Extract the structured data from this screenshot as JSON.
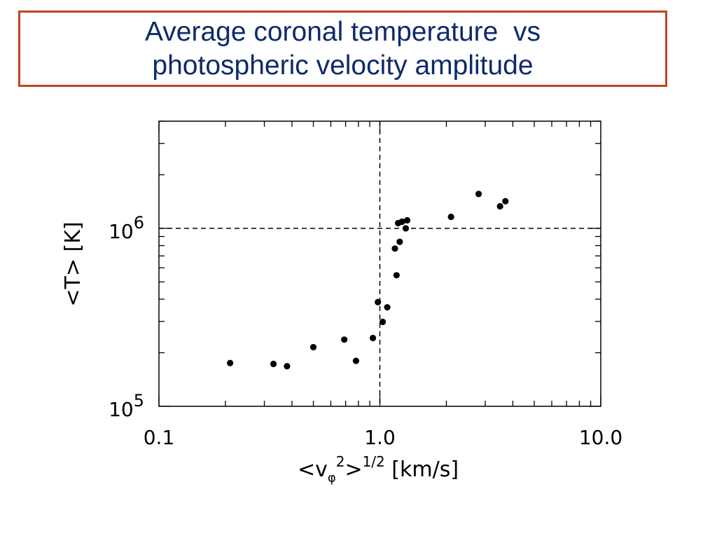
{
  "slide": {
    "title_line1": "Average coronal temperature  vs",
    "title_line2": "photospheric velocity amplitude",
    "title_color": "#0e2a6b",
    "border_color": "#c0451e"
  },
  "chart_data": {
    "type": "scatter",
    "x_scale": "log",
    "y_scale": "log",
    "xlim": [
      0.1,
      10.0
    ],
    "ylim": [
      100000,
      4000000
    ],
    "x_ticks": [
      {
        "value": 0.1,
        "label": "0.1"
      },
      {
        "value": 1.0,
        "label": "1.0"
      },
      {
        "value": 10.0,
        "label": "10.0"
      }
    ],
    "y_ticks": [
      {
        "value": 100000,
        "base": "10",
        "exp": "5"
      },
      {
        "value": 1000000,
        "base": "10",
        "exp": "6"
      }
    ],
    "xlabel": {
      "open": "<v",
      "sub": "φ",
      "sup": "2",
      "close": ">",
      "power": "1/2",
      "unit": " [km/s]"
    },
    "ylabel": "<T>  [K]",
    "reference_lines": {
      "x": 1.0,
      "y": 1000000,
      "style": "dashed"
    },
    "grid": false,
    "marker_color": "#000000",
    "points": [
      {
        "x": 0.21,
        "y": 175000
      },
      {
        "x": 0.33,
        "y": 173000
      },
      {
        "x": 0.38,
        "y": 168000
      },
      {
        "x": 0.5,
        "y": 215000
      },
      {
        "x": 0.69,
        "y": 237000
      },
      {
        "x": 0.78,
        "y": 180000
      },
      {
        "x": 0.93,
        "y": 242000
      },
      {
        "x": 0.98,
        "y": 385000
      },
      {
        "x": 1.03,
        "y": 298000
      },
      {
        "x": 1.08,
        "y": 360000
      },
      {
        "x": 1.17,
        "y": 770000
      },
      {
        "x": 1.19,
        "y": 545000
      },
      {
        "x": 1.21,
        "y": 1070000
      },
      {
        "x": 1.23,
        "y": 840000
      },
      {
        "x": 1.26,
        "y": 1090000
      },
      {
        "x": 1.31,
        "y": 1000000
      },
      {
        "x": 1.33,
        "y": 1110000
      },
      {
        "x": 2.1,
        "y": 1160000
      },
      {
        "x": 2.8,
        "y": 1560000
      },
      {
        "x": 3.5,
        "y": 1330000
      },
      {
        "x": 3.7,
        "y": 1420000
      }
    ]
  }
}
